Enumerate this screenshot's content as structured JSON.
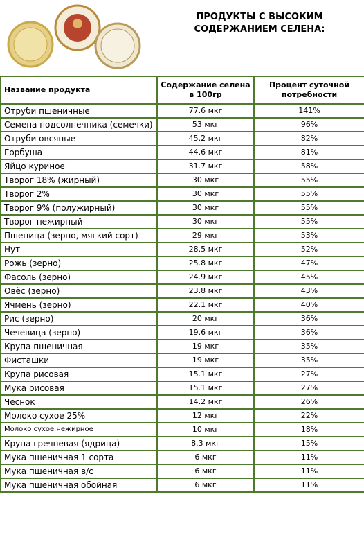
{
  "header": {
    "title_lines": [
      "ПРОДУКТЫ С ВЫСОКИМ",
      "СОДЕРЖАНИЕМ СЕЛЕНА:"
    ]
  },
  "table": {
    "columns": [
      "Название продукта",
      "Содержание селена в 100гр",
      "Процент суточной потребности"
    ],
    "rows": [
      [
        "Отруби пшеничные",
        "77.6 мкг",
        "141%"
      ],
      [
        "Семена подсолнечника (семечки)",
        "53 мкг",
        "96%"
      ],
      [
        "Отруби овсяные",
        "45.2 мкг",
        "82%"
      ],
      [
        "Горбуша",
        "44.6 мкг",
        "81%"
      ],
      [
        "Яйцо куриное",
        "31.7 мкг",
        "58%"
      ],
      [
        "Творог 18% (жирный)",
        "30 мкг",
        "55%"
      ],
      [
        "Творог 2%",
        "30 мкг",
        "55%"
      ],
      [
        "Творог 9% (полужирный)",
        "30 мкг",
        "55%"
      ],
      [
        "Творог нежирный",
        "30 мкг",
        "55%"
      ],
      [
        "Пшеница (зерно, мягкий сорт)",
        "29 мкг",
        "53%"
      ],
      [
        "Нут",
        "28.5 мкг",
        "52%"
      ],
      [
        "Рожь (зерно)",
        "25.8 мкг",
        "47%"
      ],
      [
        "Фасоль (зерно)",
        "24.9 мкг",
        "45%"
      ],
      [
        "Овёс (зерно)",
        "23.8 мкг",
        "43%"
      ],
      [
        "Ячмень (зерно)",
        "22.1 мкг",
        "40%"
      ],
      [
        "Рис (зерно)",
        "20 мкг",
        "36%"
      ],
      [
        "Чечевица (зерно)",
        "19.6 мкг",
        "36%"
      ],
      [
        "Крупа пшеничная",
        "19 мкг",
        "35%"
      ],
      [
        "Фисташки",
        "19 мкг",
        "35%"
      ],
      [
        "Крупа рисовая",
        "15.1 мкг",
        "27%"
      ],
      [
        "Мука рисовая",
        "15.1 мкг",
        "27%"
      ],
      [
        "Чеснок",
        "14.2 мкг",
        "26%"
      ],
      [
        "Молоко сухое 25%",
        "12 мкг",
        "22%"
      ],
      [
        "Молоко сухое нежирное",
        "10 мкг",
        "18%"
      ],
      [
        "Крупа гречневая (ядрица)",
        "8.3 мкг",
        "15%"
      ],
      [
        "Мука пшеничная 1 сорта",
        "6 мкг",
        "11%"
      ],
      [
        "Мука пшеничная в/с",
        "6 мкг",
        "11%"
      ],
      [
        "Мука пшеничная обойная",
        "6 мкг",
        "11%"
      ]
    ]
  }
}
